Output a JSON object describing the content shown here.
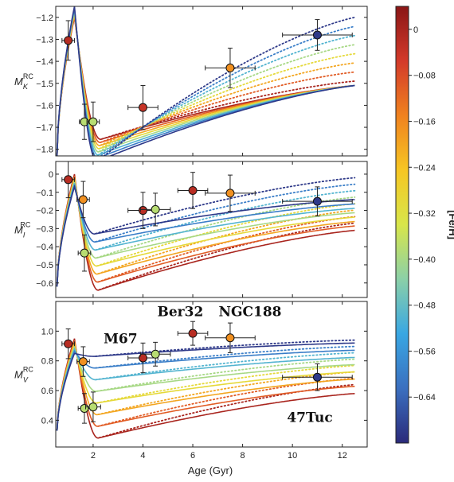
{
  "chart_data": {
    "type": "line",
    "xlabel": "Age (Gyr)",
    "xlim": [
      0.5,
      13.0
    ],
    "x_ticks": [
      "2",
      "4",
      "6",
      "8",
      "10",
      "12"
    ],
    "x_tick_values": [
      2,
      4,
      6,
      8,
      10,
      12
    ],
    "colorbar": {
      "label": "[Fe/H]",
      "range": [
        -0.72,
        0.04
      ],
      "tick_labels": [
        "0",
        "−0.08",
        "−0.16",
        "−0.24",
        "−0.32",
        "−0.40",
        "−0.48",
        "−0.56",
        "−0.64"
      ],
      "tick_values": [
        0,
        -0.08,
        -0.16,
        -0.24,
        -0.32,
        -0.4,
        -0.48,
        -0.56,
        -0.64
      ],
      "colors": [
        "#2b2a7a",
        "#3b6fbf",
        "#39a7e3",
        "#8bd0a8",
        "#d8e64a",
        "#f6c623",
        "#f0821f",
        "#d33a2a",
        "#8a1616"
      ]
    },
    "model_metallicities": [
      0.0,
      -0.1,
      -0.2,
      -0.3,
      -0.4,
      -0.5,
      -0.6,
      -0.7
    ],
    "panels": [
      {
        "id": "K",
        "ylabel_main": "M",
        "ylabel_sub": "K",
        "ylabel_sup": "RC",
        "ylim": [
          -1.15,
          -1.83
        ],
        "y_ticks": [
          "−1.8",
          "−1.7",
          "−1.6",
          "−1.5",
          "−1.4",
          "−1.3",
          "−1.2"
        ],
        "y_tick_values": [
          -1.8,
          -1.7,
          -1.6,
          -1.5,
          -1.4,
          -1.3,
          -1.2
        ],
        "model": {
          "min_age": 1.25,
          "min_val": -1.2,
          "min_spread": 0.05,
          "peak_age": 2.3,
          "peak_val": -1.755,
          "peak_spread": -0.1,
          "end_val": -1.51,
          "end_spread": 0.0,
          "dot_end": -1.49,
          "dot_end_spread": 0.29,
          "start_val": -1.83
        },
        "clusters": [
          {
            "age": 1.0,
            "age_err": 0.25,
            "val": -1.305,
            "err": 0.09,
            "feh": -0.02
          },
          {
            "age": 1.65,
            "age_err": 0.2,
            "val": -1.675,
            "err": 0.08,
            "feh": -0.38
          },
          {
            "age": 2.0,
            "age_err": 0.25,
            "val": -1.675,
            "err": 0.09,
            "feh": -0.38
          },
          {
            "age": 4.0,
            "age_err": 0.6,
            "val": -1.61,
            "err": 0.1,
            "feh": -0.04
          },
          {
            "age": 7.5,
            "age_err": 1.0,
            "val": -1.43,
            "err": 0.09,
            "feh": -0.17
          },
          {
            "age": 11.0,
            "age_err": 1.4,
            "val": -1.28,
            "err": 0.07,
            "feh": -0.7
          }
        ]
      },
      {
        "id": "I",
        "ylabel_main": "M",
        "ylabel_sub": "I",
        "ylabel_sup": "RC",
        "ylim": [
          0.07,
          -0.68
        ],
        "y_ticks": [
          "−0.6",
          "−0.5",
          "−0.4",
          "−0.3",
          "−0.2",
          "−0.1",
          "0"
        ],
        "y_tick_values": [
          -0.6,
          -0.5,
          -0.4,
          -0.3,
          -0.2,
          -0.1,
          0
        ],
        "model": {
          "min_age": 1.25,
          "min_val": 0.0,
          "min_spread": -0.07,
          "peak_age": 2.2,
          "peak_val": -0.64,
          "peak_spread": 0.31,
          "end_val": -0.31,
          "end_spread": 0.17,
          "dot_end": -0.27,
          "dot_end_spread": 0.25,
          "start_val": -0.62
        },
        "clusters": [
          {
            "age": 1.0,
            "age_err": 0.25,
            "val": -0.03,
            "err": 0.1,
            "feh": -0.02
          },
          {
            "age": 1.6,
            "age_err": 0.25,
            "val": -0.14,
            "err": 0.1,
            "feh": -0.17
          },
          {
            "age": 1.65,
            "age_err": 0.25,
            "val": -0.435,
            "err": 0.1,
            "feh": -0.38
          },
          {
            "age": 4.0,
            "age_err": 0.6,
            "val": -0.2,
            "err": 0.1,
            "feh": -0.02
          },
          {
            "age": 4.5,
            "age_err": 0.6,
            "val": -0.195,
            "err": 0.09,
            "feh": -0.38
          },
          {
            "age": 6.0,
            "age_err": 0.6,
            "val": -0.09,
            "err": 0.1,
            "feh": -0.02
          },
          {
            "age": 7.5,
            "age_err": 1.0,
            "val": -0.105,
            "err": 0.1,
            "feh": -0.17
          },
          {
            "age": 11.0,
            "age_err": 1.4,
            "val": -0.15,
            "err": 0.08,
            "feh": -0.7
          }
        ]
      },
      {
        "id": "V",
        "ylabel_main": "M",
        "ylabel_sub": "V",
        "ylabel_sup": "RC",
        "ylim": [
          1.2,
          0.22
        ],
        "y_ticks": [
          "0.4",
          "0.6",
          "0.8",
          "1.0"
        ],
        "y_tick_values": [
          0.4,
          0.6,
          0.8,
          1.0
        ],
        "model": {
          "min_age": 1.25,
          "min_val": 0.95,
          "min_spread": -0.1,
          "peak_age": 2.2,
          "peak_val": 0.28,
          "peak_spread": 0.55,
          "end_val": 0.58,
          "end_spread": 0.34,
          "dot_end": 0.64,
          "dot_end_spread": 0.3,
          "start_val": 0.33
        },
        "clusters": [
          {
            "age": 1.0,
            "age_err": 0.25,
            "val": 0.915,
            "err": 0.1,
            "feh": -0.02
          },
          {
            "age": 1.6,
            "age_err": 0.25,
            "val": 0.795,
            "err": 0.1,
            "feh": -0.17
          },
          {
            "age": 1.65,
            "age_err": 0.25,
            "val": 0.48,
            "err": 0.1,
            "feh": -0.38
          },
          {
            "age": 2.0,
            "age_err": 0.3,
            "val": 0.49,
            "err": 0.1,
            "feh": -0.38
          },
          {
            "age": 4.0,
            "age_err": 0.6,
            "val": 0.82,
            "err": 0.1,
            "feh": -0.02
          },
          {
            "age": 4.5,
            "age_err": 0.6,
            "val": 0.845,
            "err": 0.08,
            "feh": -0.38
          },
          {
            "age": 6.0,
            "age_err": 0.6,
            "val": 0.985,
            "err": 0.08,
            "feh": -0.02
          },
          {
            "age": 7.5,
            "age_err": 1.0,
            "val": 0.955,
            "err": 0.1,
            "feh": -0.17
          },
          {
            "age": 11.0,
            "age_err": 1.4,
            "val": 0.69,
            "err": 0.09,
            "feh": -0.7
          }
        ],
        "annotations": [
          {
            "text": "47Tuc",
            "age": 10.7,
            "val": 0.39
          },
          {
            "text": "M67",
            "age": 3.1,
            "val": 0.92
          },
          {
            "text": "Ber32",
            "age": 5.5,
            "val": 1.1
          },
          {
            "text": "NGC188",
            "age": 8.3,
            "val": 1.1
          }
        ]
      }
    ]
  }
}
